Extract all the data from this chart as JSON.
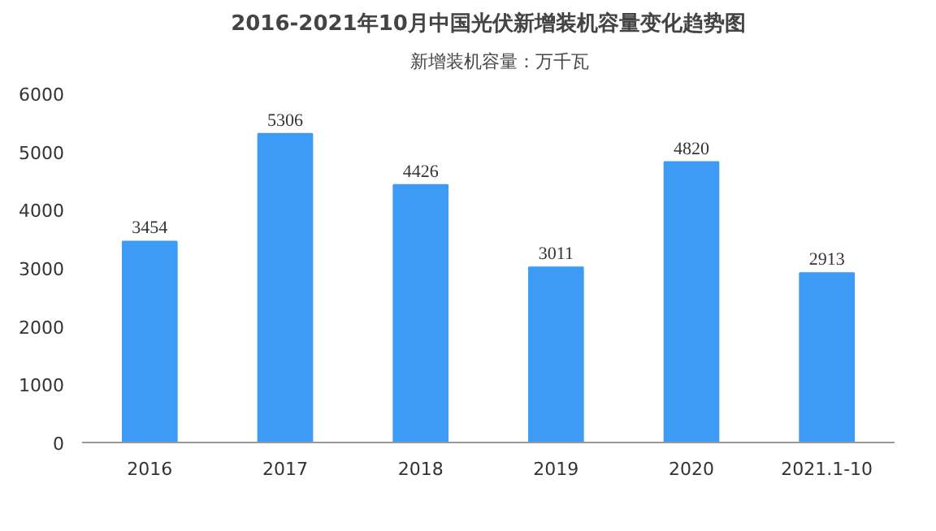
{
  "chart_data": {
    "type": "bar",
    "title": "2016-2021年10月中国光伏新增装机容量变化趋势图",
    "categories": [
      "2016",
      "2017",
      "2018",
      "2019",
      "2020",
      "2021.1-10"
    ],
    "series": [
      {
        "name": "新增装机容量：万千瓦",
        "color": "#3d9bf5",
        "values": [
          3454,
          5306,
          4426,
          3011,
          4820,
          2913
        ]
      }
    ],
    "ylim": [
      0,
      6000
    ],
    "yticks": [
      0,
      1000,
      2000,
      3000,
      4000,
      5000,
      6000
    ],
    "data_labels": true,
    "legend": "top",
    "grid": false
  }
}
